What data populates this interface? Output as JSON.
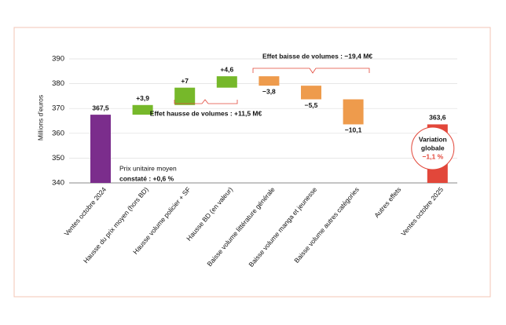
{
  "chart_data": {
    "type": "waterfall",
    "y_label": "Millions d'euros",
    "categories": [
      "Ventes octobre 2024",
      "Hausse du prix moyen (hors BD)",
      "Hausse volume policier + SF",
      "Hausse BD (en valeur)",
      "Baisse volume littérature générale",
      "Baisse volume manga et jeunesse",
      "Baisse volume autres catégories",
      "Autres effets",
      "Ventes octobre 2025"
    ],
    "values": [
      367.5,
      3.9,
      7,
      4.6,
      -3.8,
      -5.5,
      -10.1,
      null,
      363.6
    ],
    "value_labels": [
      "367,5",
      "+3,9",
      "+7",
      "+4,6",
      "−3,8",
      "−5,5",
      "−10,1",
      null,
      "363,6"
    ],
    "measures": [
      "total",
      "relative",
      "relative",
      "relative",
      "relative",
      "relative",
      "relative",
      "relative",
      "total"
    ],
    "colors": [
      "#7b2d8c",
      "#76b82a",
      "#76b82a",
      "#76b82a",
      "#ee9b4c",
      "#ee9b4c",
      "#ee9b4c",
      "#ee9b4c",
      "#e2473a"
    ],
    "ylim": [
      340,
      392
    ],
    "yticks": [
      340,
      350,
      360,
      370,
      380,
      390
    ],
    "grid": true,
    "annotations": [
      "Effet baisse de volumes : −19,4 M€",
      "Effet hausse de volumes : +11,5 M€",
      "Prix unitaire moyen",
      "constaté : +0,6 %",
      "Variation",
      "globale",
      "−1,1 %"
    ]
  }
}
